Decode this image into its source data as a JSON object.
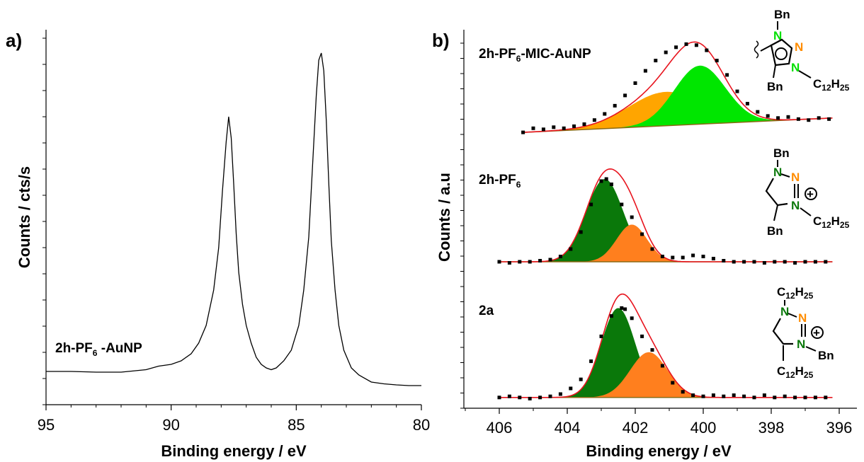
{
  "panels": {
    "a": {
      "letter": "a)"
    },
    "b": {
      "letter": "b)"
    }
  },
  "chart_data": [
    {
      "type": "line",
      "panel": "a",
      "xlabel": "Binding energy / eV",
      "ylabel": "Counts / cts/s",
      "xlim": [
        95,
        80
      ],
      "x_reversed": true,
      "xticks": [
        95,
        90,
        85,
        80
      ],
      "ylim": [
        0,
        1
      ],
      "y_tick_labels_shown": false,
      "grid": false,
      "annotation": {
        "main": "2h-PF",
        "sub": "6",
        "suffix": " -AuNP"
      },
      "series": [
        {
          "color": "#000000",
          "x": [
            95,
            94,
            93,
            92,
            91,
            90.5,
            90,
            89.6,
            89.2,
            88.9,
            88.6,
            88.3,
            88.1,
            87.95,
            87.8,
            87.7,
            87.6,
            87.5,
            87.4,
            87.3,
            87.15,
            87.0,
            86.8,
            86.6,
            86.4,
            86.2,
            86.0,
            85.8,
            85.5,
            85.2,
            84.9,
            84.7,
            84.5,
            84.35,
            84.2,
            84.1,
            84.0,
            83.9,
            83.8,
            83.7,
            83.6,
            83.45,
            83.3,
            83.1,
            82.8,
            82.5,
            82.0,
            81.5,
            81.0,
            80.5,
            80.0
          ],
          "y": [
            0.07,
            0.07,
            0.068,
            0.068,
            0.075,
            0.085,
            0.09,
            0.1,
            0.12,
            0.15,
            0.2,
            0.3,
            0.42,
            0.58,
            0.72,
            0.79,
            0.73,
            0.6,
            0.46,
            0.35,
            0.26,
            0.2,
            0.15,
            0.11,
            0.09,
            0.08,
            0.075,
            0.08,
            0.1,
            0.13,
            0.2,
            0.3,
            0.45,
            0.65,
            0.85,
            0.95,
            0.97,
            0.92,
            0.78,
            0.6,
            0.44,
            0.3,
            0.2,
            0.13,
            0.08,
            0.06,
            0.04,
            0.035,
            0.032,
            0.03,
            0.03
          ]
        }
      ]
    },
    {
      "type": "area",
      "panel": "b",
      "xlabel": "Binding energy / eV",
      "ylabel": "Counts / a.u",
      "xlim": [
        407,
        396
      ],
      "x_reversed": true,
      "xticks": [
        406,
        404,
        402,
        400,
        398,
        396
      ],
      "ylim": [
        0,
        1
      ],
      "y_tick_labels_shown": false,
      "grid": false,
      "subplots": [
        {
          "label": {
            "main": "2h-PF",
            "sub": "6",
            "suffix": "-MIC-AuNP"
          },
          "structure": {
            "top": "Bn",
            "bottom": "Bn",
            "right_sub": "12",
            "right_sub2": "25",
            "right_main": "C",
            "right_h": "H"
          },
          "baseline": {
            "x": [
              405.3,
              396.2
            ],
            "y": [
              0.02,
              0.16
            ]
          },
          "components": [
            {
              "color": "#FFA500",
              "center": 401.1,
              "height": 0.33,
              "sigma": 1.1
            },
            {
              "color": "#00E600",
              "center": 400.1,
              "height": 0.57,
              "sigma": 0.75
            }
          ],
          "fit_color": "#E8141E",
          "points": {
            "x": [
              405.3,
              405.0,
              404.7,
              404.4,
              404.1,
              403.8,
              403.5,
              403.2,
              402.9,
              402.6,
              402.3,
              402.0,
              401.7,
              401.4,
              401.1,
              400.8,
              400.5,
              400.2,
              399.9,
              399.6,
              399.3,
              399.0,
              398.7,
              398.4,
              398.1,
              397.8,
              397.5,
              397.2,
              396.9,
              396.6,
              396.3
            ],
            "y": [
              0.02,
              0.06,
              0.05,
              0.07,
              0.06,
              0.08,
              0.1,
              0.14,
              0.2,
              0.28,
              0.38,
              0.5,
              0.62,
              0.72,
              0.8,
              0.85,
              0.88,
              0.87,
              0.82,
              0.72,
              0.58,
              0.42,
              0.3,
              0.22,
              0.18,
              0.16,
              0.17,
              0.15,
              0.14,
              0.16,
              0.15
            ]
          }
        },
        {
          "label": {
            "main": "2h-PF",
            "sub": "6",
            "suffix": ""
          },
          "structure": {
            "top": "Bn",
            "bottom": "Bn",
            "right_sub": "12",
            "right_sub2": "25",
            "right_main": "C",
            "right_h": "H"
          },
          "baseline": {
            "x": [
              406.0,
              396.2
            ],
            "y": [
              0.02,
              0.02
            ]
          },
          "components": [
            {
              "color": "#0A780A",
              "center": 402.9,
              "height": 0.78,
              "sigma": 0.55
            },
            {
              "color": "#FF7F1E",
              "center": 402.1,
              "height": 0.35,
              "sigma": 0.45
            }
          ],
          "fit_color": "#E8141E",
          "points": {
            "x": [
              406.0,
              405.7,
              405.4,
              405.1,
              404.8,
              404.5,
              404.2,
              403.9,
              403.6,
              403.3,
              403.0,
              402.85,
              402.7,
              402.4,
              402.1,
              401.8,
              401.5,
              401.2,
              400.9,
              400.6,
              400.3,
              400.0,
              399.7,
              399.4,
              399.1,
              398.8,
              398.5,
              398.2,
              397.9,
              397.6,
              397.3,
              397.0,
              396.7,
              396.4
            ],
            "y": [
              0.02,
              0.01,
              0.02,
              0.02,
              0.03,
              0.04,
              0.07,
              0.14,
              0.3,
              0.56,
              0.78,
              0.8,
              0.75,
              0.56,
              0.44,
              0.28,
              0.14,
              0.07,
              0.06,
              0.06,
              0.08,
              0.07,
              0.05,
              0.03,
              0.02,
              0.02,
              0.02,
              0.01,
              0.02,
              0.02,
              0.01,
              0.02,
              0.02,
              0.02
            ]
          }
        },
        {
          "label": {
            "main": "2a",
            "sub": "",
            "suffix": ""
          },
          "structure": {
            "top": "C",
            "top_sub": "12",
            "top_h": "H",
            "top_sub2": "25",
            "bottom": "C",
            "bottom_sub": "12",
            "bottom_h": "H",
            "bottom_sub2": "25",
            "right": "Bn"
          },
          "baseline": {
            "x": [
              406.0,
              396.2
            ],
            "y": [
              0.02,
              0.02
            ]
          },
          "components": [
            {
              "color": "#0A780A",
              "center": 402.5,
              "height": 0.79,
              "sigma": 0.5
            },
            {
              "color": "#FF7F1E",
              "center": 401.6,
              "height": 0.4,
              "sigma": 0.55
            }
          ],
          "fit_color": "#E8141E",
          "points": {
            "x": [
              406.0,
              405.7,
              405.4,
              405.1,
              404.8,
              404.5,
              404.2,
              403.9,
              403.6,
              403.3,
              403.0,
              402.7,
              402.4,
              402.3,
              402.1,
              401.8,
              401.5,
              401.2,
              400.9,
              400.6,
              400.3,
              400.0,
              399.7,
              399.4,
              399.1,
              398.8,
              398.5,
              398.2,
              397.9,
              397.6,
              397.3,
              397.0,
              396.7,
              396.4
            ],
            "y": [
              0.02,
              0.03,
              0.02,
              0.01,
              0.02,
              0.03,
              0.05,
              0.1,
              0.18,
              0.34,
              0.56,
              0.74,
              0.81,
              0.8,
              0.72,
              0.56,
              0.44,
              0.3,
              0.15,
              0.07,
              0.04,
              0.03,
              0.04,
              0.03,
              0.04,
              0.03,
              0.02,
              0.04,
              0.02,
              0.03,
              0.02,
              0.02,
              0.02,
              0.02
            ]
          }
        }
      ]
    }
  ]
}
